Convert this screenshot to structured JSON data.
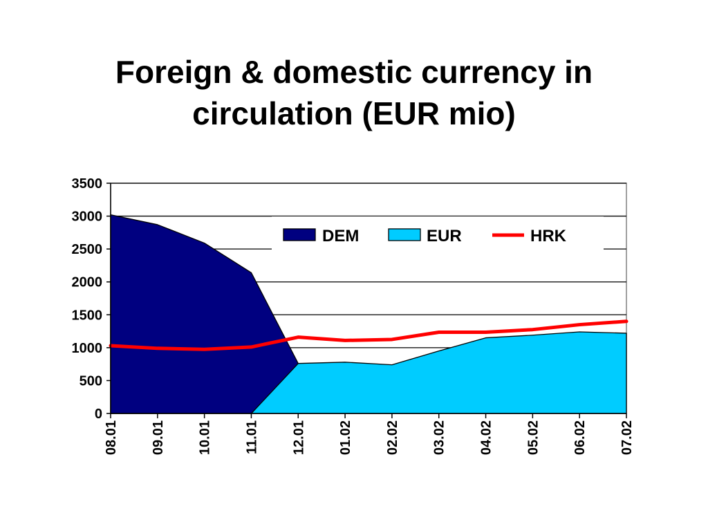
{
  "title": {
    "line1": "Foreign & domestic currency in",
    "line2": "circulation (EUR mio)"
  },
  "chart_data": {
    "type": "area",
    "categories": [
      "08.01",
      "09.01",
      "10.01",
      "11.01",
      "12.01",
      "01.02",
      "02.02",
      "03.02",
      "04.02",
      "05.02",
      "06.02",
      "07.02"
    ],
    "series": [
      {
        "name": "DEM",
        "kind": "area",
        "color": "#000080",
        "values": [
          3020,
          2870,
          2590,
          2140,
          760,
          340,
          40,
          15,
          5,
          3,
          2,
          2
        ]
      },
      {
        "name": "EUR",
        "kind": "area",
        "color": "#00CCFF",
        "values": [
          0,
          0,
          0,
          0,
          760,
          780,
          740,
          950,
          1150,
          1190,
          1240,
          1220
        ]
      },
      {
        "name": "HRK",
        "kind": "line",
        "color": "#FF0000",
        "values": [
          1030,
          990,
          975,
          1010,
          1160,
          1110,
          1125,
          1235,
          1235,
          1275,
          1350,
          1400
        ]
      }
    ],
    "ylim": [
      0,
      3500
    ],
    "yticks": [
      0,
      500,
      1000,
      1500,
      2000,
      2500,
      3000,
      3500
    ],
    "grid": true,
    "legend_position": "top"
  }
}
